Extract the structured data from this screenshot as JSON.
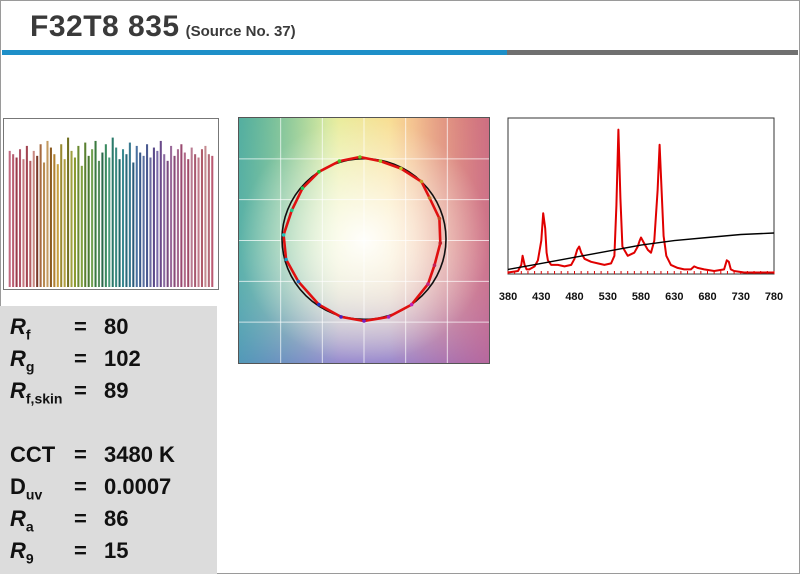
{
  "header": {
    "title": "F32T8 835",
    "subtitle": "(Source No. 37)",
    "rule_colors": {
      "left": "#1e8fc8",
      "right": "#707070"
    }
  },
  "metrics": [
    {
      "symbol": "R",
      "italic": true,
      "subscript": "f",
      "equals": "=",
      "value": "80"
    },
    {
      "symbol": "R",
      "italic": true,
      "subscript": "g",
      "equals": "=",
      "value": "102"
    },
    {
      "symbol": "R",
      "italic": true,
      "subscript": "f,skin",
      "equals": "=",
      "value": "89"
    },
    {
      "symbol": "CCT",
      "italic": false,
      "subscript": "",
      "equals": "=",
      "value": "3480 K"
    },
    {
      "symbol": "D",
      "italic": false,
      "subscript": "uv",
      "equals": "=",
      "value": "0.0007"
    },
    {
      "symbol": "R",
      "italic": true,
      "subscript": "a",
      "equals": "=",
      "value": "86"
    },
    {
      "symbol": "R",
      "italic": true,
      "subscript": "9",
      "equals": "=",
      "value": "15"
    }
  ],
  "chart_data": [
    {
      "type": "bar",
      "description_source": "per-sample fidelity bars",
      "values": [
        82,
        80,
        78,
        83,
        77,
        85,
        76,
        82,
        79,
        86,
        75,
        88,
        84,
        80,
        74,
        86,
        77,
        90,
        82,
        78,
        85,
        73,
        87,
        79,
        83,
        88,
        76,
        81,
        86,
        78,
        90,
        84,
        77,
        83,
        80,
        87,
        75,
        85,
        81,
        79,
        86,
        78,
        84,
        82,
        88,
        80,
        76,
        85,
        79,
        83,
        86,
        81,
        77,
        84,
        80,
        78,
        83,
        85,
        80,
        79
      ],
      "colors": [
        "#c36a80",
        "#b85c70",
        "#9c3a4a",
        "#b0566a",
        "#c77a80",
        "#a24552",
        "#b45f63",
        "#c98a82",
        "#7a3a2a",
        "#a66a40",
        "#b78a50",
        "#c49a60",
        "#8a5a20",
        "#b08030",
        "#c7a040",
        "#9a8a30",
        "#b0a040",
        "#707020",
        "#a0a040",
        "#8a9a30",
        "#6a8a30",
        "#80a040",
        "#5a8030",
        "#4a7a30",
        "#70a050",
        "#3a7a40",
        "#5a9060",
        "#2a6a4a",
        "#3a8a60",
        "#4a9a7a",
        "#2a7a6a",
        "#3a8a80",
        "#206a6a",
        "#3a8a90",
        "#2a6a7a",
        "#3a7a90",
        "#2a5a7a",
        "#4a70a0",
        "#3a5a8a",
        "#5a70a0",
        "#4a5a90",
        "#6a6aa0",
        "#5a4a8a",
        "#7a6aa8",
        "#6a4a8a",
        "#8a6aa0",
        "#7a4a80",
        "#9a6a9a",
        "#8a4a78",
        "#a66a90",
        "#9a4a70",
        "#b06a88",
        "#a04a68",
        "#b87a90",
        "#a85a70",
        "#c07a8a",
        "#b05a6a",
        "#c48a90",
        "#b46a78",
        "#bb5a72"
      ],
      "ylim": [
        0,
        100
      ]
    },
    {
      "type": "scatter",
      "description_source": "colour vector graphic",
      "axes_grid": "on",
      "reference_circle": {
        "radius": 1.0
      },
      "test_polygon": [
        [
          0.0,
          -1.0
        ],
        [
          0.3,
          -0.95
        ],
        [
          0.58,
          -0.8
        ],
        [
          0.78,
          -0.55
        ],
        [
          0.86,
          -0.32
        ],
        [
          0.93,
          -0.05
        ],
        [
          0.92,
          0.25
        ],
        [
          0.8,
          0.5
        ],
        [
          0.7,
          0.7
        ],
        [
          0.45,
          0.86
        ],
        [
          0.2,
          0.95
        ],
        [
          -0.05,
          1.0
        ],
        [
          -0.3,
          0.95
        ],
        [
          -0.55,
          0.82
        ],
        [
          -0.75,
          0.62
        ],
        [
          -0.88,
          0.35
        ],
        [
          -0.98,
          0.05
        ],
        [
          -0.95,
          -0.25
        ],
        [
          -0.8,
          -0.52
        ],
        [
          -0.55,
          -0.8
        ],
        [
          -0.28,
          -0.95
        ]
      ]
    },
    {
      "type": "line",
      "description_source": "spectral power distribution",
      "xlabel": "",
      "ylabel": "",
      "xticks": [
        "380",
        "430",
        "480",
        "530",
        "580",
        "630",
        "680",
        "730",
        "780"
      ],
      "xlim": [
        380,
        780
      ],
      "ylim": [
        0,
        1
      ],
      "series": [
        {
          "color": "#e00000",
          "x": [
            380,
            395,
            400,
            402,
            405,
            408,
            412,
            420,
            425,
            430,
            433,
            436,
            438,
            440,
            445,
            455,
            465,
            475,
            480,
            484,
            487,
            490,
            495,
            505,
            515,
            525,
            535,
            540,
            543,
            546,
            549,
            552,
            560,
            570,
            575,
            578,
            580,
            585,
            590,
            595,
            600,
            605,
            608,
            611,
            614,
            618,
            625,
            635,
            645,
            655,
            660,
            665,
            675,
            690,
            705,
            709,
            712,
            715,
            720,
            735,
            750,
            765,
            780
          ],
          "y": [
            0.01,
            0.02,
            0.06,
            0.12,
            0.06,
            0.03,
            0.03,
            0.05,
            0.09,
            0.22,
            0.4,
            0.3,
            0.14,
            0.09,
            0.06,
            0.06,
            0.05,
            0.06,
            0.1,
            0.16,
            0.18,
            0.14,
            0.1,
            0.08,
            0.07,
            0.06,
            0.07,
            0.12,
            0.45,
            0.95,
            0.5,
            0.18,
            0.12,
            0.14,
            0.18,
            0.22,
            0.24,
            0.2,
            0.16,
            0.14,
            0.22,
            0.55,
            0.85,
            0.55,
            0.25,
            0.12,
            0.06,
            0.04,
            0.03,
            0.03,
            0.05,
            0.04,
            0.03,
            0.02,
            0.03,
            0.09,
            0.08,
            0.03,
            0.02,
            0.01,
            0.01,
            0.01,
            0.01
          ]
        },
        {
          "color": "#000000",
          "x": [
            380,
            430,
            480,
            530,
            580,
            630,
            680,
            730,
            780
          ],
          "y": [
            0.03,
            0.07,
            0.11,
            0.15,
            0.19,
            0.22,
            0.24,
            0.26,
            0.27
          ]
        }
      ]
    }
  ]
}
